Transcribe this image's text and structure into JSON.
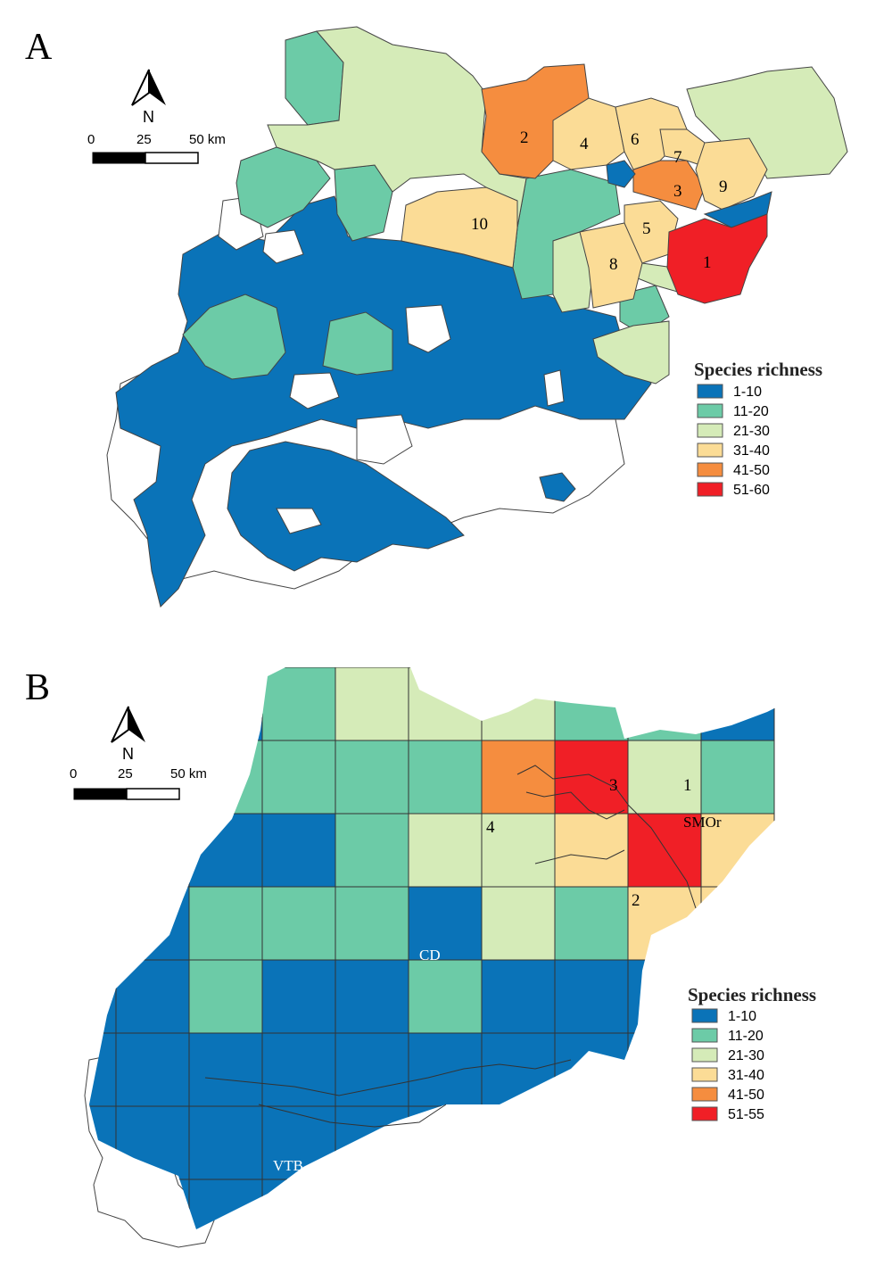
{
  "panel_a": {
    "letter": "A",
    "north_label": "N",
    "scale": {
      "ticks": [
        "0",
        "25",
        "50 km"
      ]
    },
    "legend": {
      "title": "Species richness",
      "entries": [
        {
          "label": "1-10",
          "color": "#0a73b8"
        },
        {
          "label": "11-20",
          "color": "#6ccba7"
        },
        {
          "label": "21-30",
          "color": "#d5ebb8"
        },
        {
          "label": "31-40",
          "color": "#fbdc96"
        },
        {
          "label": "41-50",
          "color": "#f58d3f"
        },
        {
          "label": "51-60",
          "color": "#f01f26"
        }
      ]
    },
    "ranked_labels": [
      "1",
      "2",
      "3",
      "4",
      "5",
      "6",
      "7",
      "8",
      "9",
      "10"
    ]
  },
  "panel_b": {
    "letter": "B",
    "north_label": "N",
    "scale": {
      "ticks": [
        "0",
        "25",
        "50 km"
      ]
    },
    "legend": {
      "title": "Species richness",
      "entries": [
        {
          "label": "1-10",
          "color": "#0a73b8"
        },
        {
          "label": "11-20",
          "color": "#6ccba7"
        },
        {
          "label": "21-30",
          "color": "#d5ebb8"
        },
        {
          "label": "31-40",
          "color": "#fbdc96"
        },
        {
          "label": "41-50",
          "color": "#f58d3f"
        },
        {
          "label": "51-55",
          "color": "#f01f26"
        }
      ]
    },
    "ranked_labels": [
      "1",
      "2",
      "3",
      "4"
    ],
    "place_labels": [
      "SMOr",
      "CD",
      "VTB"
    ]
  }
}
